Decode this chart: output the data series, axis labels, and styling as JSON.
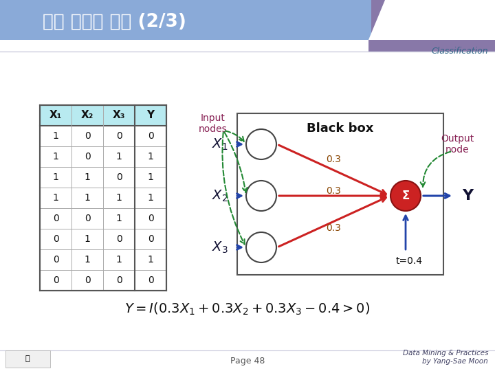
{
  "title": "인공 신경망 개념 (2/3)",
  "classification": "Classification",
  "page": "Page 48",
  "footer": "Data Mining & Practices\nby Yang-Sae Moon",
  "table_headers": [
    "X₁",
    "X₂",
    "X₃",
    "Y"
  ],
  "table_data": [
    [
      1,
      0,
      0,
      0
    ],
    [
      1,
      0,
      1,
      1
    ],
    [
      1,
      1,
      0,
      1
    ],
    [
      1,
      1,
      1,
      1
    ],
    [
      0,
      0,
      1,
      0
    ],
    [
      0,
      1,
      0,
      0
    ],
    [
      0,
      1,
      1,
      1
    ],
    [
      0,
      0,
      0,
      0
    ]
  ],
  "weights": [
    "0.3",
    "0.3",
    "0.3"
  ],
  "threshold": "t=0.4",
  "header_left_color": "#8AAAD8",
  "header_right_color": "#8878A8",
  "slide_bg": "#FFFFFF",
  "table_header_bg": "#AAE0E8",
  "node_color_fill": "#FFFFFF",
  "node_color_edge": "#444444",
  "sigma_fill": "#CC2222",
  "sigma_edge": "#881111",
  "arrow_red": "#CC2222",
  "arrow_blue": "#2244AA",
  "arrow_green": "#228833",
  "weight_color": "#884400",
  "label_color_dark": "#111133",
  "output_node_label_color": "#882255",
  "input_nodes_label_color": "#882255",
  "classification_color": "#336688",
  "footer_color": "#444466",
  "formula_color": "#111111"
}
